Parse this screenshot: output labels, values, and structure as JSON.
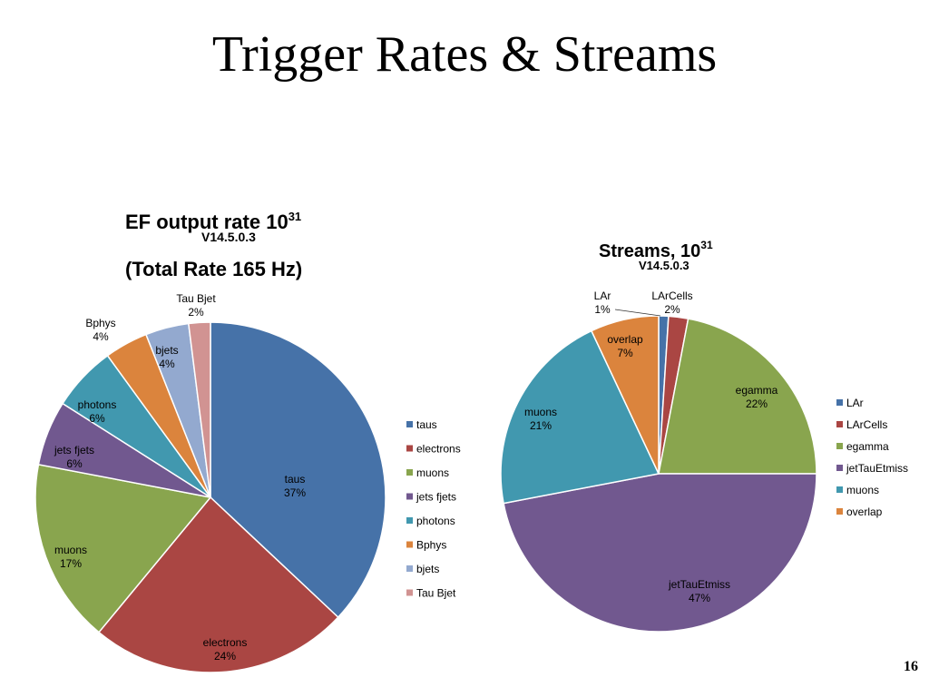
{
  "slide": {
    "title": "Trigger Rates & Streams",
    "page_number": "16"
  },
  "chart_data": [
    {
      "type": "pie",
      "title": "EF output rate 10",
      "title_sup": "31",
      "subtitle": "V14.5.0.3",
      "title_line2": "(Total Rate 165 Hz)",
      "legend_position": "right",
      "categories": [
        "taus",
        "electrons",
        "muons",
        "jets fjets",
        "photons",
        "Bphys",
        "bjets",
        "Tau Bjet"
      ],
      "values": [
        37,
        24,
        17,
        6,
        6,
        4,
        4,
        2
      ],
      "labels": [
        "37%",
        "24%",
        "17%",
        "6%",
        "6%",
        "4%",
        "4%",
        "2%"
      ],
      "colors": [
        "#4672a8",
        "#aa4643",
        "#89a54e",
        "#71588f",
        "#4198af",
        "#db843d",
        "#93a9cf",
        "#d19392"
      ]
    },
    {
      "type": "pie",
      "title": "Streams, 10",
      "title_sup": "31",
      "subtitle": "V14.5.0.3",
      "legend_position": "right",
      "categories": [
        "LAr",
        "LArCells",
        "egamma",
        "jetTauEtmiss",
        "muons",
        "overlap"
      ],
      "values": [
        1,
        2,
        22,
        47,
        21,
        7
      ],
      "labels": [
        "1%",
        "2%",
        "22%",
        "47%",
        "21%",
        "7%"
      ],
      "colors": [
        "#4672a8",
        "#aa4643",
        "#89a54e",
        "#71588f",
        "#4198af",
        "#db843d"
      ]
    }
  ]
}
